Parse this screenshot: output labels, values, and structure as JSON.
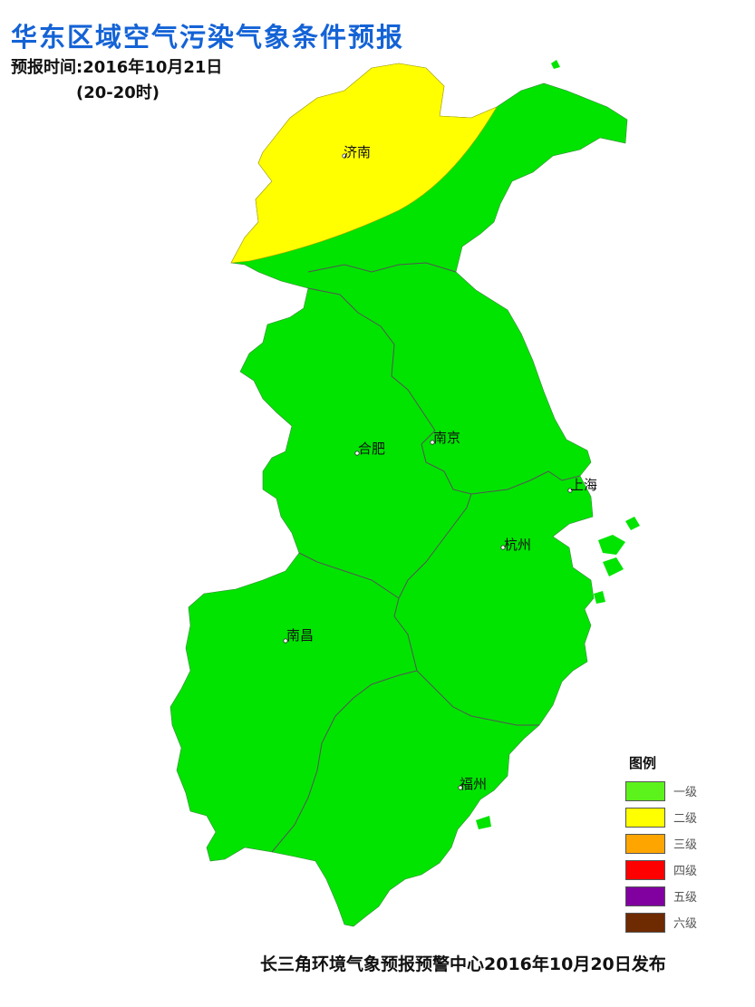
{
  "header": {
    "title": "华东区域空气污染气象条件预报",
    "forecast_time": "预报时间:2016年10月21日",
    "forecast_range": "(20-20时)"
  },
  "cities": [
    "济南",
    "合肥",
    "南京",
    "上海",
    "杭州",
    "南昌",
    "福州"
  ],
  "legend": {
    "title": "图例",
    "items": [
      {
        "label": "一级",
        "color": "#5cf21c"
      },
      {
        "label": "二级",
        "color": "#ffff00"
      },
      {
        "label": "三级",
        "color": "#ffa500"
      },
      {
        "label": "四级",
        "color": "#ff0000"
      },
      {
        "label": "五级",
        "color": "#8000a0"
      },
      {
        "label": "六级",
        "color": "#6e2a00"
      }
    ]
  },
  "map_colors": {
    "level1_fill": "#00e400",
    "level2_fill": "#ffff00",
    "boundary": "#555555"
  },
  "footer": {
    "issuer": "长三角环境气象预报预警中心2016年10月20日发布"
  }
}
